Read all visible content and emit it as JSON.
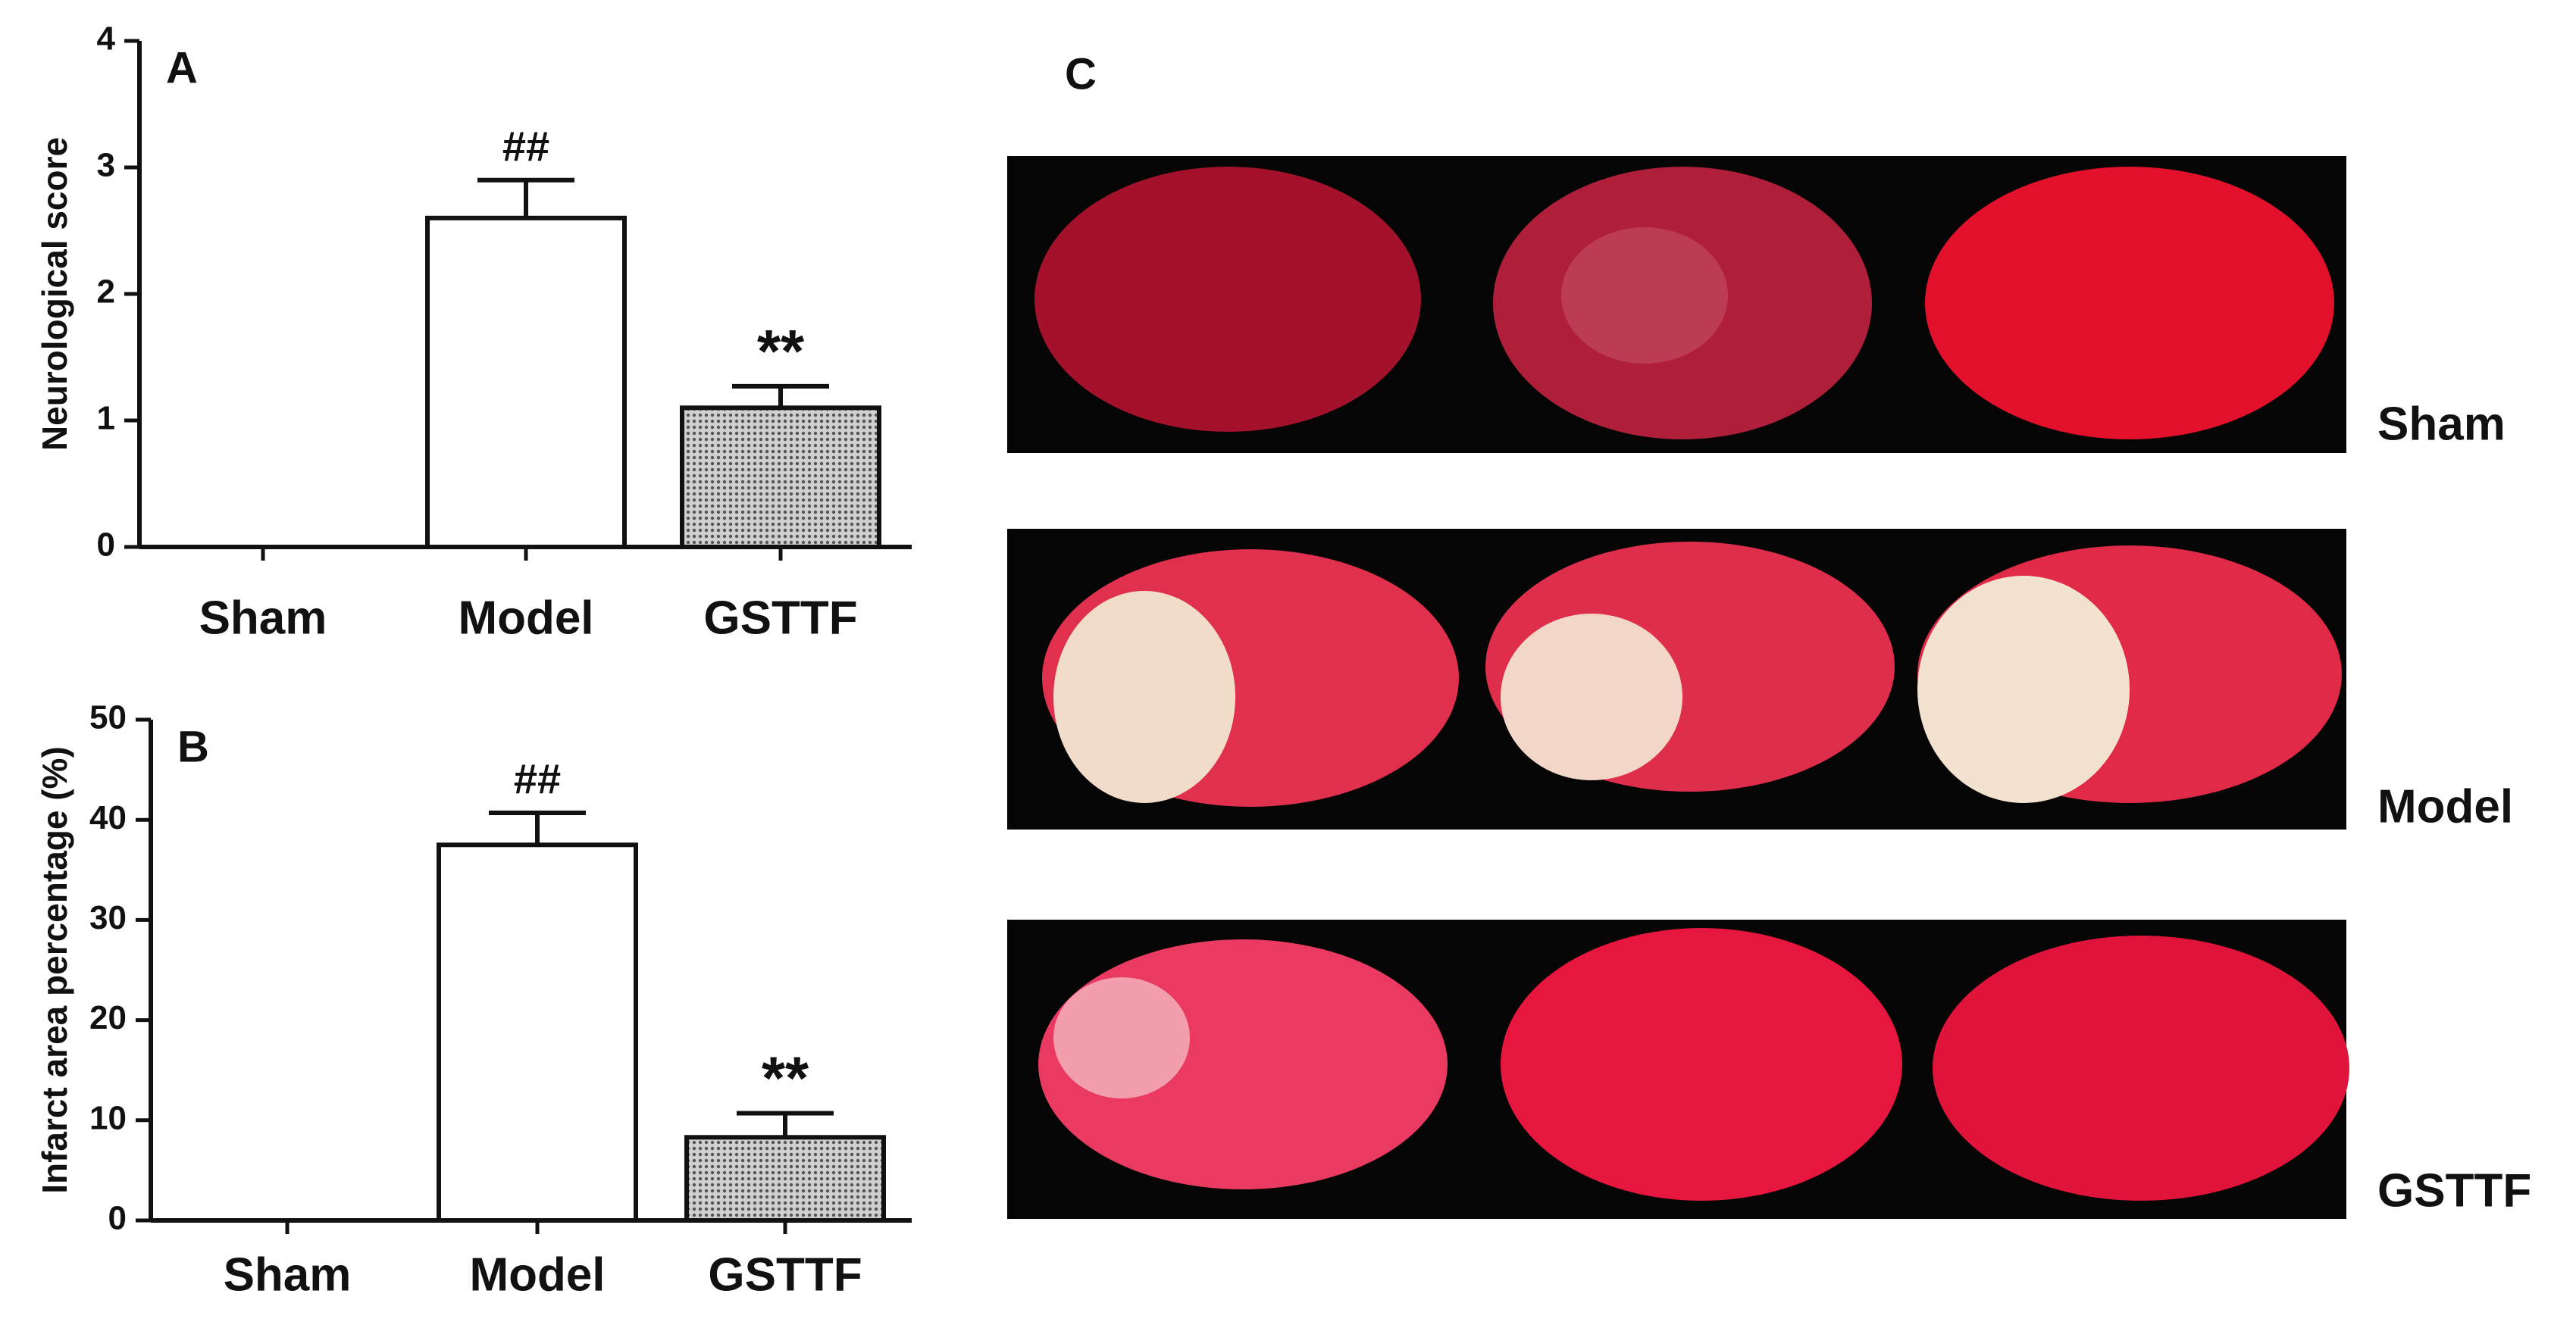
{
  "chart_data": [
    {
      "type": "bar",
      "panel_label": "A",
      "ylabel": "Neurological score",
      "categories": [
        "Sham",
        "Model",
        "GSTTF"
      ],
      "values": [
        0,
        2.6,
        1.1
      ],
      "errors": [
        null,
        0.3,
        0.17
      ],
      "annotations": [
        null,
        "##",
        "**"
      ],
      "colors": [
        "#ffffff",
        "#ffffff",
        "#a8a8a8"
      ],
      "ylim": [
        0,
        4
      ],
      "yticks": [
        0,
        1,
        2,
        3,
        4
      ]
    },
    {
      "type": "bar",
      "panel_label": "B",
      "ylabel": "Infarct area percentage (%)",
      "categories": [
        "Sham",
        "Model",
        "GSTTF"
      ],
      "values": [
        0,
        37.5,
        8.3
      ],
      "errors": [
        null,
        3.2,
        2.4
      ],
      "annotations": [
        null,
        "##",
        "**"
      ],
      "colors": [
        "#ffffff",
        "#ffffff",
        "#a8a8a8"
      ],
      "ylim": [
        0,
        50
      ],
      "yticks": [
        0,
        10,
        20,
        30,
        40,
        50
      ]
    }
  ],
  "panel_c": {
    "label": "C",
    "rows": [
      "Sham",
      "Model",
      "GSTTF"
    ]
  }
}
